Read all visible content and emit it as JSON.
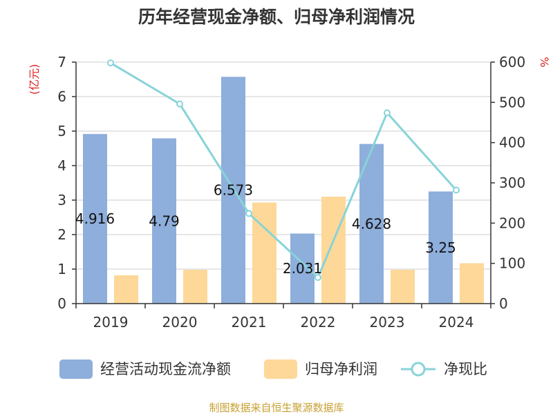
{
  "chart_data": {
    "type": "bar",
    "title": "历年经营现金净额、归母净利润情况",
    "categories": [
      "2019",
      "2020",
      "2021",
      "2022",
      "2023",
      "2024"
    ],
    "left_axis": {
      "label": "(亿元)",
      "ylim": [
        0,
        7
      ],
      "ticks": [
        "0",
        "1",
        "2",
        "3",
        "4",
        "5",
        "6",
        "7"
      ]
    },
    "right_axis": {
      "label": "%",
      "ylim": [
        0,
        600
      ],
      "ticks": [
        "0",
        "100",
        "200",
        "300",
        "400",
        "500",
        "600"
      ]
    },
    "series": [
      {
        "name": "经营活动现金流净额",
        "type": "bar",
        "axis": "left",
        "color": "#8eaedb",
        "values": [
          4.916,
          4.79,
          6.573,
          2.031,
          4.628,
          3.25
        ],
        "labels": [
          "4.916",
          "4.79",
          "6.573",
          "2.031",
          "4.628",
          "3.25"
        ]
      },
      {
        "name": "归母净利润",
        "type": "bar",
        "axis": "left",
        "color": "#fdd898",
        "values": [
          0.82,
          0.98,
          2.93,
          3.1,
          0.98,
          1.17
        ]
      },
      {
        "name": "净现比",
        "type": "line",
        "axis": "right",
        "color": "#88d3d8",
        "values": [
          598,
          496,
          224,
          65,
          474,
          282
        ]
      }
    ],
    "grid": true,
    "legend_position": "bottom"
  },
  "source": "制图数据来自恒生聚源数据库"
}
